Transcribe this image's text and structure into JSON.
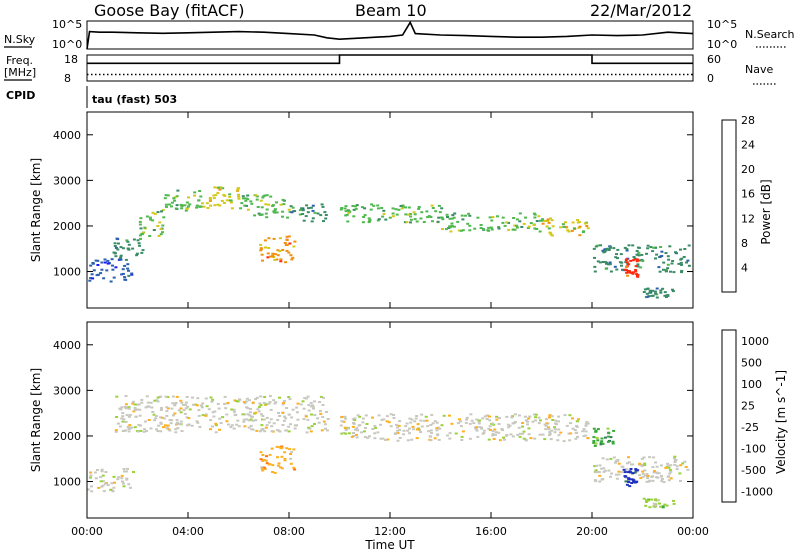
{
  "header": {
    "station": "Goose Bay (fitACF)",
    "beam": "Beam 10",
    "date": "22/Mar/2012"
  },
  "left_labels": {
    "nsky": "N.Sky",
    "freq": "Freq.",
    "freq_unit": "[MHz]",
    "cpid": "CPID"
  },
  "right_labels": {
    "nsearch": "N.Search",
    "nave": "Nave"
  },
  "cpid_text": "tau (fast) 503",
  "chart_data": [
    {
      "type": "line",
      "name": "noise-panel",
      "left_axis": {
        "label": "N.Sky",
        "ticks": [
          "10^5",
          "10^0"
        ]
      },
      "right_axis": {
        "label": "N.Search",
        "ticks": [
          "10^5",
          "10^0"
        ]
      },
      "x": [
        0.0,
        0.1,
        0.5,
        1,
        2,
        3,
        4,
        5,
        6,
        7,
        8,
        9,
        9.5,
        10,
        11,
        12,
        12.5,
        12.8,
        13,
        14,
        15,
        16,
        17,
        18,
        19,
        20,
        21,
        22,
        23,
        24
      ],
      "nsky": [
        0.0,
        0.62,
        0.6,
        0.6,
        0.58,
        0.56,
        0.58,
        0.6,
        0.62,
        0.6,
        0.55,
        0.5,
        0.4,
        0.35,
        0.4,
        0.45,
        0.5,
        0.95,
        0.55,
        0.5,
        0.48,
        0.45,
        0.42,
        0.42,
        0.45,
        0.5,
        0.48,
        0.5,
        0.6,
        0.55
      ]
    },
    {
      "type": "line",
      "name": "frequency-nave-panel",
      "left_axis": {
        "label": "Freq. [MHz]",
        "ticks": [
          "18",
          "8"
        ]
      },
      "right_axis": {
        "label": "Nave",
        "ticks": [
          "60",
          "0"
        ]
      },
      "x": [
        0,
        10,
        10,
        20,
        20,
        24
      ],
      "freq_mhz": [
        14.8,
        14.8,
        18,
        18,
        14.8,
        14.8
      ],
      "nave": [
        15,
        15,
        15,
        15,
        15,
        15
      ]
    },
    {
      "type": "heatmap",
      "title": "Power",
      "xlabel": "Time UT",
      "ylabel": "Slant Range [km]",
      "xlim": [
        0,
        24
      ],
      "ylim": [
        200,
        4500
      ],
      "y_ticks": [
        1000,
        2000,
        3000,
        4000
      ],
      "x_ticks": [
        "00:00",
        "04:00",
        "08:00",
        "12:00",
        "16:00",
        "20:00",
        "00:00"
      ],
      "colorbar": {
        "label": "Power [dB]",
        "ticks": [
          4,
          8,
          12,
          16,
          20,
          24,
          28
        ],
        "colors": [
          "#1a1aff",
          "#2b5fb0",
          "#3a8c66",
          "#4fb84f",
          "#d4c81a",
          "#f09010",
          "#ff2a10"
        ]
      },
      "bands": [
        {
          "t0": 0.0,
          "t1": 1.8,
          "r0": 800,
          "r1": 1300,
          "level": 1
        },
        {
          "t0": 1.0,
          "t1": 2.2,
          "r0": 1300,
          "r1": 1800,
          "level": 2
        },
        {
          "t0": 2.0,
          "t1": 3.0,
          "r0": 1800,
          "r1": 2400,
          "level": 3
        },
        {
          "t0": 3.0,
          "t1": 4.5,
          "r0": 2300,
          "r1": 2800,
          "level": 3
        },
        {
          "t0": 4.5,
          "t1": 6.0,
          "r0": 2400,
          "r1": 2900,
          "level": 4
        },
        {
          "t0": 6.0,
          "t1": 8.0,
          "r0": 2200,
          "r1": 2700,
          "level": 3
        },
        {
          "t0": 8.0,
          "t1": 9.5,
          "r0": 2100,
          "r1": 2500,
          "level": 2
        },
        {
          "t0": 10.0,
          "t1": 14.0,
          "r0": 2100,
          "r1": 2500,
          "level": 3
        },
        {
          "t0": 14.0,
          "t1": 18.0,
          "r0": 1900,
          "r1": 2300,
          "level": 3
        },
        {
          "t0": 18.0,
          "t1": 19.8,
          "r0": 1800,
          "r1": 2200,
          "level": 4
        },
        {
          "t0": 20.0,
          "t1": 23.8,
          "r0": 1000,
          "r1": 1600,
          "level": 2
        },
        {
          "t0": 6.8,
          "t1": 8.2,
          "r0": 1200,
          "r1": 1800,
          "level": 5
        },
        {
          "t0": 21.2,
          "t1": 21.8,
          "r0": 900,
          "r1": 1300,
          "level": 6
        },
        {
          "t0": 22.0,
          "t1": 23.2,
          "r0": 450,
          "r1": 650,
          "level": 2
        }
      ]
    },
    {
      "type": "heatmap",
      "title": "Velocity",
      "xlabel": "Time UT",
      "ylabel": "Slant Range [km]",
      "xlim": [
        0,
        24
      ],
      "ylim": [
        200,
        4500
      ],
      "y_ticks": [
        1000,
        2000,
        3000,
        4000
      ],
      "x_ticks": [
        "00:00",
        "04:00",
        "08:00",
        "12:00",
        "16:00",
        "20:00",
        "00:00"
      ],
      "colorbar": {
        "label": "Velocity [m s^-1]",
        "ticks": [
          "1000",
          "500",
          "100",
          "25",
          "-25",
          "-100",
          "-500",
          "-1000"
        ],
        "colors": [
          "#2030c0",
          "#2f7a5a",
          "#3aa83a",
          "#9ad23a",
          "#c8c8c0",
          "#ffb020",
          "#ff7010",
          "#ff2010"
        ]
      },
      "bands": [
        {
          "t0": 0.0,
          "t1": 1.8,
          "r0": 800,
          "r1": 1300,
          "level": 4
        },
        {
          "t0": 1.0,
          "t1": 9.5,
          "r0": 2100,
          "r1": 2900,
          "level": 4
        },
        {
          "t0": 10.0,
          "t1": 19.8,
          "r0": 1900,
          "r1": 2500,
          "level": 4
        },
        {
          "t0": 6.8,
          "t1": 8.2,
          "r0": 1200,
          "r1": 1800,
          "level": 5
        },
        {
          "t0": 20.0,
          "t1": 23.8,
          "r0": 1000,
          "r1": 1600,
          "level": 4
        },
        {
          "t0": 20.0,
          "t1": 20.8,
          "r0": 1800,
          "r1": 2200,
          "level": 2
        },
        {
          "t0": 21.2,
          "t1": 21.8,
          "r0": 900,
          "r1": 1300,
          "level": 0
        },
        {
          "t0": 22.0,
          "t1": 23.2,
          "r0": 450,
          "r1": 650,
          "level": 3
        }
      ]
    }
  ]
}
